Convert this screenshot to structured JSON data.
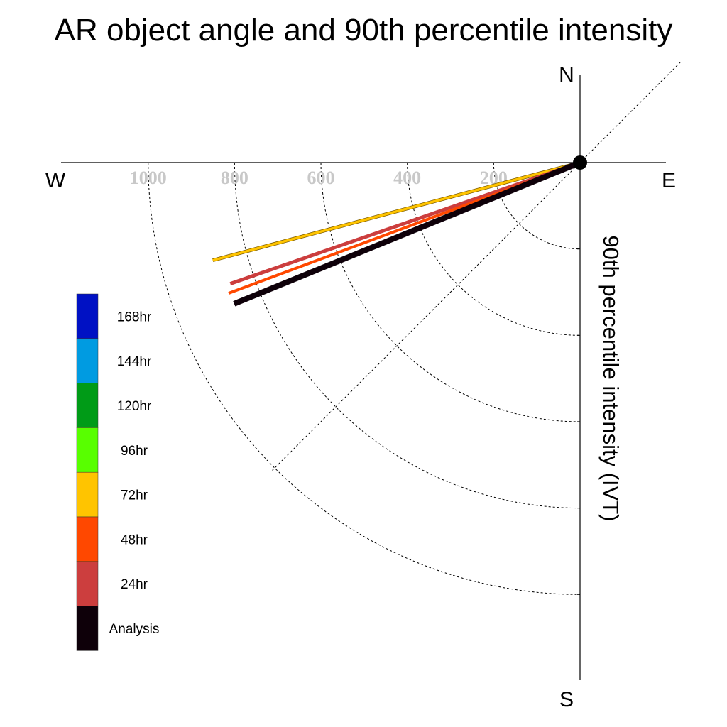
{
  "chart_data": {
    "type": "polar-vector",
    "title": "AR object angle and 90th percentile intensity",
    "ylabel": "90th percentile intensity (IVT)",
    "compass": {
      "north": "N",
      "south": "S",
      "east": "E",
      "west": "W"
    },
    "radial_ticks": [
      "200",
      "400",
      "600",
      "800",
      "1000"
    ],
    "radial_tick_values": [
      200,
      400,
      600,
      800,
      1000
    ],
    "diagonal_guides": [
      45,
      -135
    ],
    "series": [
      {
        "name": "72hr",
        "angle_deg": -165.1,
        "magnitude": 880,
        "color": "#ffc400"
      },
      {
        "name": "24hr",
        "angle_deg": -160.9,
        "magnitude": 857,
        "color": "#cc3e3e"
      },
      {
        "name": "48hr",
        "angle_deg": -159.6,
        "magnitude": 868,
        "color": "#ff4800"
      },
      {
        "name": "Analysis",
        "angle_deg": -157.8,
        "magnitude": 865,
        "color": "#0e0009"
      }
    ],
    "legend": [
      {
        "label": "168hr",
        "color": "#0011c4"
      },
      {
        "label": "144hr",
        "color": "#009be1"
      },
      {
        "label": "120hr",
        "color": "#009b17"
      },
      {
        "label": "96hr",
        "color": "#58ff00"
      },
      {
        "label": "72hr",
        "color": "#ffc400"
      },
      {
        "label": "48hr",
        "color": "#ff4800"
      },
      {
        "label": "24hr",
        "color": "#cc3e3e"
      },
      {
        "label": "Analysis",
        "color": "#0e0009"
      }
    ]
  }
}
